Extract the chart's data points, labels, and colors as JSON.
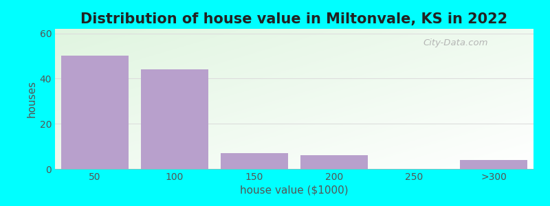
{
  "title": "Distribution of house value in Miltonvale, KS in 2022",
  "xlabel": "house value ($1000)",
  "ylabel": "houses",
  "bar_labels": [
    "50",
    "100",
    "150",
    "200",
    "250",
    ">300"
  ],
  "bar_values": [
    50,
    44,
    7,
    6,
    0,
    4
  ],
  "bar_color": "#b8a0cc",
  "ylim": [
    0,
    62
  ],
  "yticks": [
    0,
    20,
    40,
    60
  ],
  "background_color": "#00FFFF",
  "title_fontsize": 15,
  "axis_label_fontsize": 11,
  "tick_fontsize": 10,
  "bar_width": 0.85,
  "watermark_text": "City-Data.com",
  "grid_color": "#dddddd",
  "text_color": "#555555"
}
